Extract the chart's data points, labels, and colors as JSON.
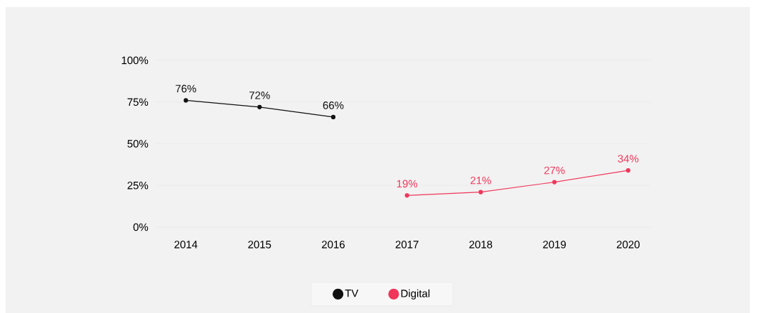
{
  "chart_data": {
    "type": "line",
    "categories": [
      "2014",
      "2015",
      "2016",
      "2017",
      "2018",
      "2019",
      "2020"
    ],
    "series": [
      {
        "name": "TV",
        "color": "#111111",
        "values": [
          76,
          72,
          66,
          null,
          null,
          null,
          null
        ],
        "value_labels": [
          "76%",
          "72%",
          "66%",
          null,
          null,
          null,
          null
        ]
      },
      {
        "name": "Digital",
        "color": "#f0365a",
        "values": [
          null,
          null,
          null,
          19,
          21,
          27,
          34
        ],
        "value_labels": [
          null,
          null,
          null,
          "19%",
          "21%",
          "27%",
          "34%"
        ]
      }
    ],
    "ylim": [
      0,
      100
    ],
    "yticks": [
      {
        "value": 0,
        "label": "0%"
      },
      {
        "value": 25,
        "label": "25%"
      },
      {
        "value": 50,
        "label": "50%"
      },
      {
        "value": 75,
        "label": "75%"
      },
      {
        "value": 100,
        "label": "100%"
      }
    ],
    "grid": "y",
    "legend": "bottom",
    "marker": "circle",
    "line_style": "solid"
  }
}
